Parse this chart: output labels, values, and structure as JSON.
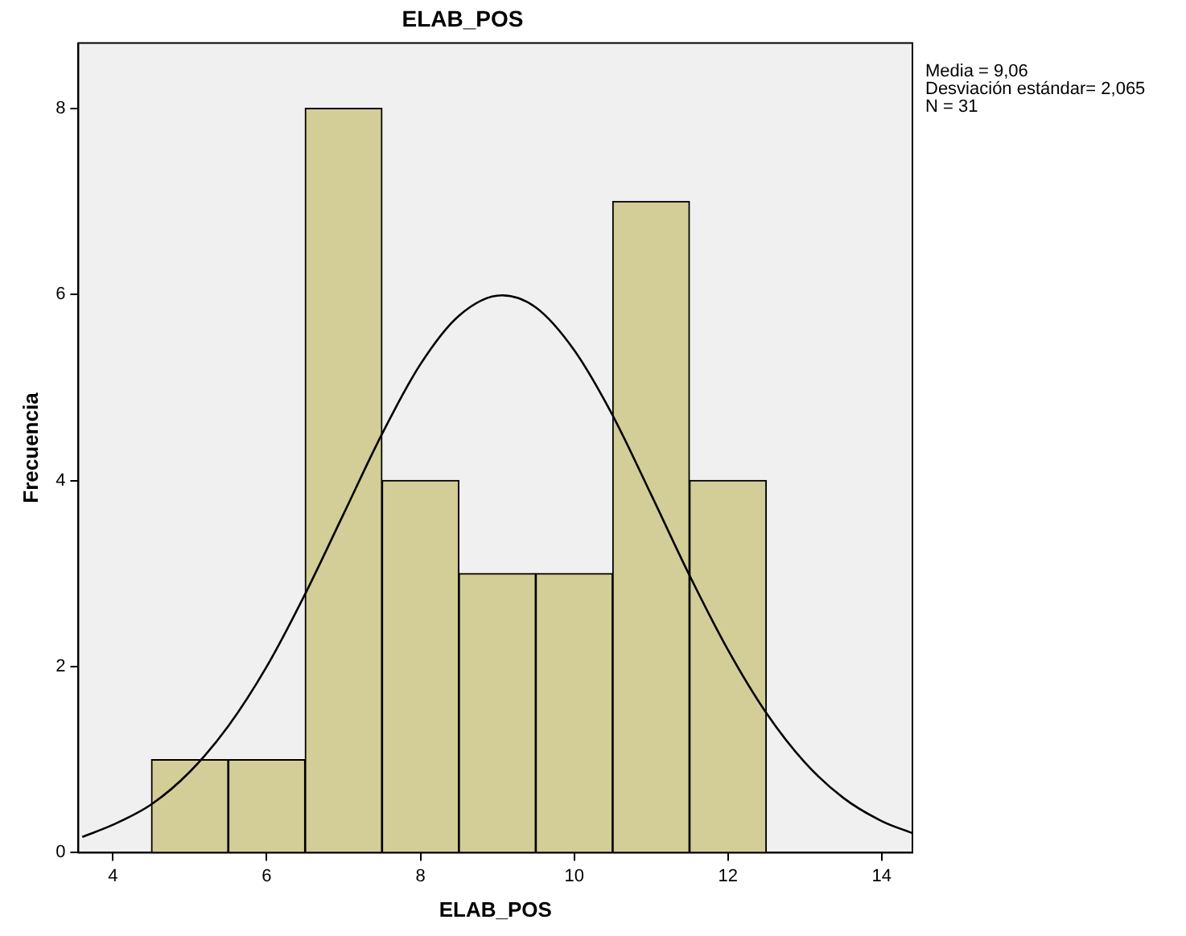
{
  "chart_data": {
    "type": "histogram",
    "title": "ELAB_POS",
    "xlabel": "ELAB_POS",
    "ylabel": "Frecuencia",
    "bins": [
      4.5,
      5.5,
      6.5,
      7.5,
      8.5,
      9.5,
      10.5,
      11.5,
      12.5
    ],
    "values": [
      1,
      1,
      8,
      4,
      3,
      3,
      7,
      4
    ],
    "color": "#d3ce97",
    "series": [
      {
        "type": "line",
        "color": "#000000",
        "x": [
          3.6,
          4,
          4.5,
          5,
          5.5,
          6,
          6.5,
          7,
          7.5,
          8,
          8.5,
          9.06,
          9.5,
          10,
          10.5,
          11,
          11.5,
          12,
          12.5,
          13,
          13.5,
          14,
          14.4
        ],
        "values": [
          0.17,
          0.3,
          0.52,
          0.87,
          1.36,
          2.0,
          2.78,
          3.64,
          4.5,
          5.25,
          5.77,
          5.99,
          5.86,
          5.4,
          4.7,
          3.85,
          2.98,
          2.18,
          1.5,
          0.97,
          0.59,
          0.34,
          0.21
        ]
      }
    ],
    "xlim": [
      3.55,
      14.4
    ],
    "xticks": [
      4,
      6,
      8,
      10,
      12,
      14
    ],
    "ylim": [
      0,
      8.7
    ],
    "yticks": [
      0,
      2,
      4,
      6,
      8
    ],
    "grid": false,
    "legend": false,
    "marker": "none",
    "line_style": "solid",
    "annotations": [
      "Media = 9,06",
      "Desviación estándar= 2,065",
      "N = 31"
    ]
  }
}
